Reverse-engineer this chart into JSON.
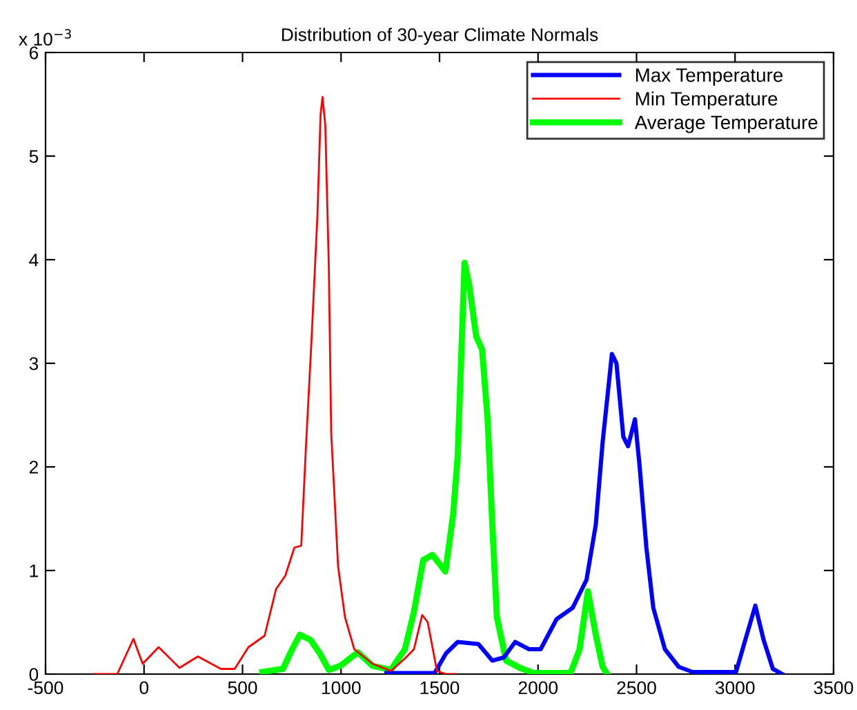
{
  "chart_data": {
    "type": "line",
    "title": "Distribution of 30-year Climate Normals",
    "annotations": [
      "x 10$^{−3}$"
    ],
    "xlim": [
      -500,
      3500
    ],
    "xticks": [
      -500,
      0,
      500,
      1000,
      1500,
      2000,
      2500,
      3000,
      3500
    ],
    "ylim": [
      0,
      6
    ],
    "yticks": [
      0,
      1,
      2,
      3,
      4,
      5,
      6
    ],
    "grid": false,
    "legend": "top right",
    "marker": "none",
    "line_style": "solid",
    "series": [
      {
        "name": "Max Temperature",
        "color": "#0000ff",
        "x": [
          1230,
          1475,
          1533,
          1592,
          1697,
          1768,
          1826,
          1884,
          1954,
          2013,
          2094,
          2176,
          2246,
          2293,
          2328,
          2375,
          2398,
          2433,
          2457,
          2492,
          2515,
          2550,
          2585,
          2644,
          2714,
          2784,
          3005,
          3052,
          3103,
          3145,
          3192,
          3239
        ],
        "values": [
          0.01,
          0.01,
          0.2,
          0.31,
          0.29,
          0.13,
          0.16,
          0.31,
          0.24,
          0.24,
          0.53,
          0.64,
          0.91,
          1.44,
          2.24,
          3.09,
          3.0,
          2.29,
          2.2,
          2.46,
          2.02,
          1.22,
          0.64,
          0.24,
          0.07,
          0.02,
          0.02,
          0.33,
          0.66,
          0.33,
          0.05,
          0.0
        ]
      },
      {
        "name": "Min Temperature",
        "color": "#ff0000",
        "x": [
          -255,
          -136,
          -54,
          -7,
          74,
          180,
          273,
          390,
          460,
          530,
          612,
          670,
          717,
          763,
          798,
          822,
          850,
          880,
          896,
          906,
          920,
          938,
          950,
          985,
          1020,
          1067,
          1160,
          1253,
          1324,
          1370,
          1412,
          1440,
          1487,
          1533,
          1580
        ],
        "values": [
          0,
          0,
          0.34,
          0.1,
          0.26,
          0.06,
          0.17,
          0.05,
          0.05,
          0.26,
          0.37,
          0.82,
          0.95,
          1.22,
          1.24,
          2.2,
          3.22,
          4.42,
          5.4,
          5.57,
          5.3,
          3.93,
          2.33,
          1.04,
          0.55,
          0.24,
          0.1,
          0.03,
          0.15,
          0.24,
          0.57,
          0.5,
          0.03,
          0,
          0
        ]
      },
      {
        "name": "Average Temperature",
        "color": "#00ff00",
        "x": [
          600,
          705,
          752,
          791,
          845,
          892,
          938,
          997,
          1085,
          1160,
          1253,
          1324,
          1370,
          1417,
          1464,
          1530,
          1569,
          1592,
          1627,
          1651,
          1686,
          1716,
          1744,
          1768,
          1791,
          1838,
          1908,
          1978,
          2165,
          2211,
          2253,
          2293,
          2328,
          2351
        ],
        "values": [
          0.02,
          0.05,
          0.24,
          0.38,
          0.33,
          0.2,
          0.04,
          0.08,
          0.21,
          0.08,
          0.04,
          0.24,
          0.6,
          1.1,
          1.15,
          0.99,
          1.54,
          2.1,
          3.97,
          3.75,
          3.26,
          3.13,
          2.46,
          1.44,
          0.55,
          0.13,
          0.06,
          0.01,
          0.01,
          0.24,
          0.8,
          0.38,
          0.07,
          0
        ]
      }
    ]
  }
}
